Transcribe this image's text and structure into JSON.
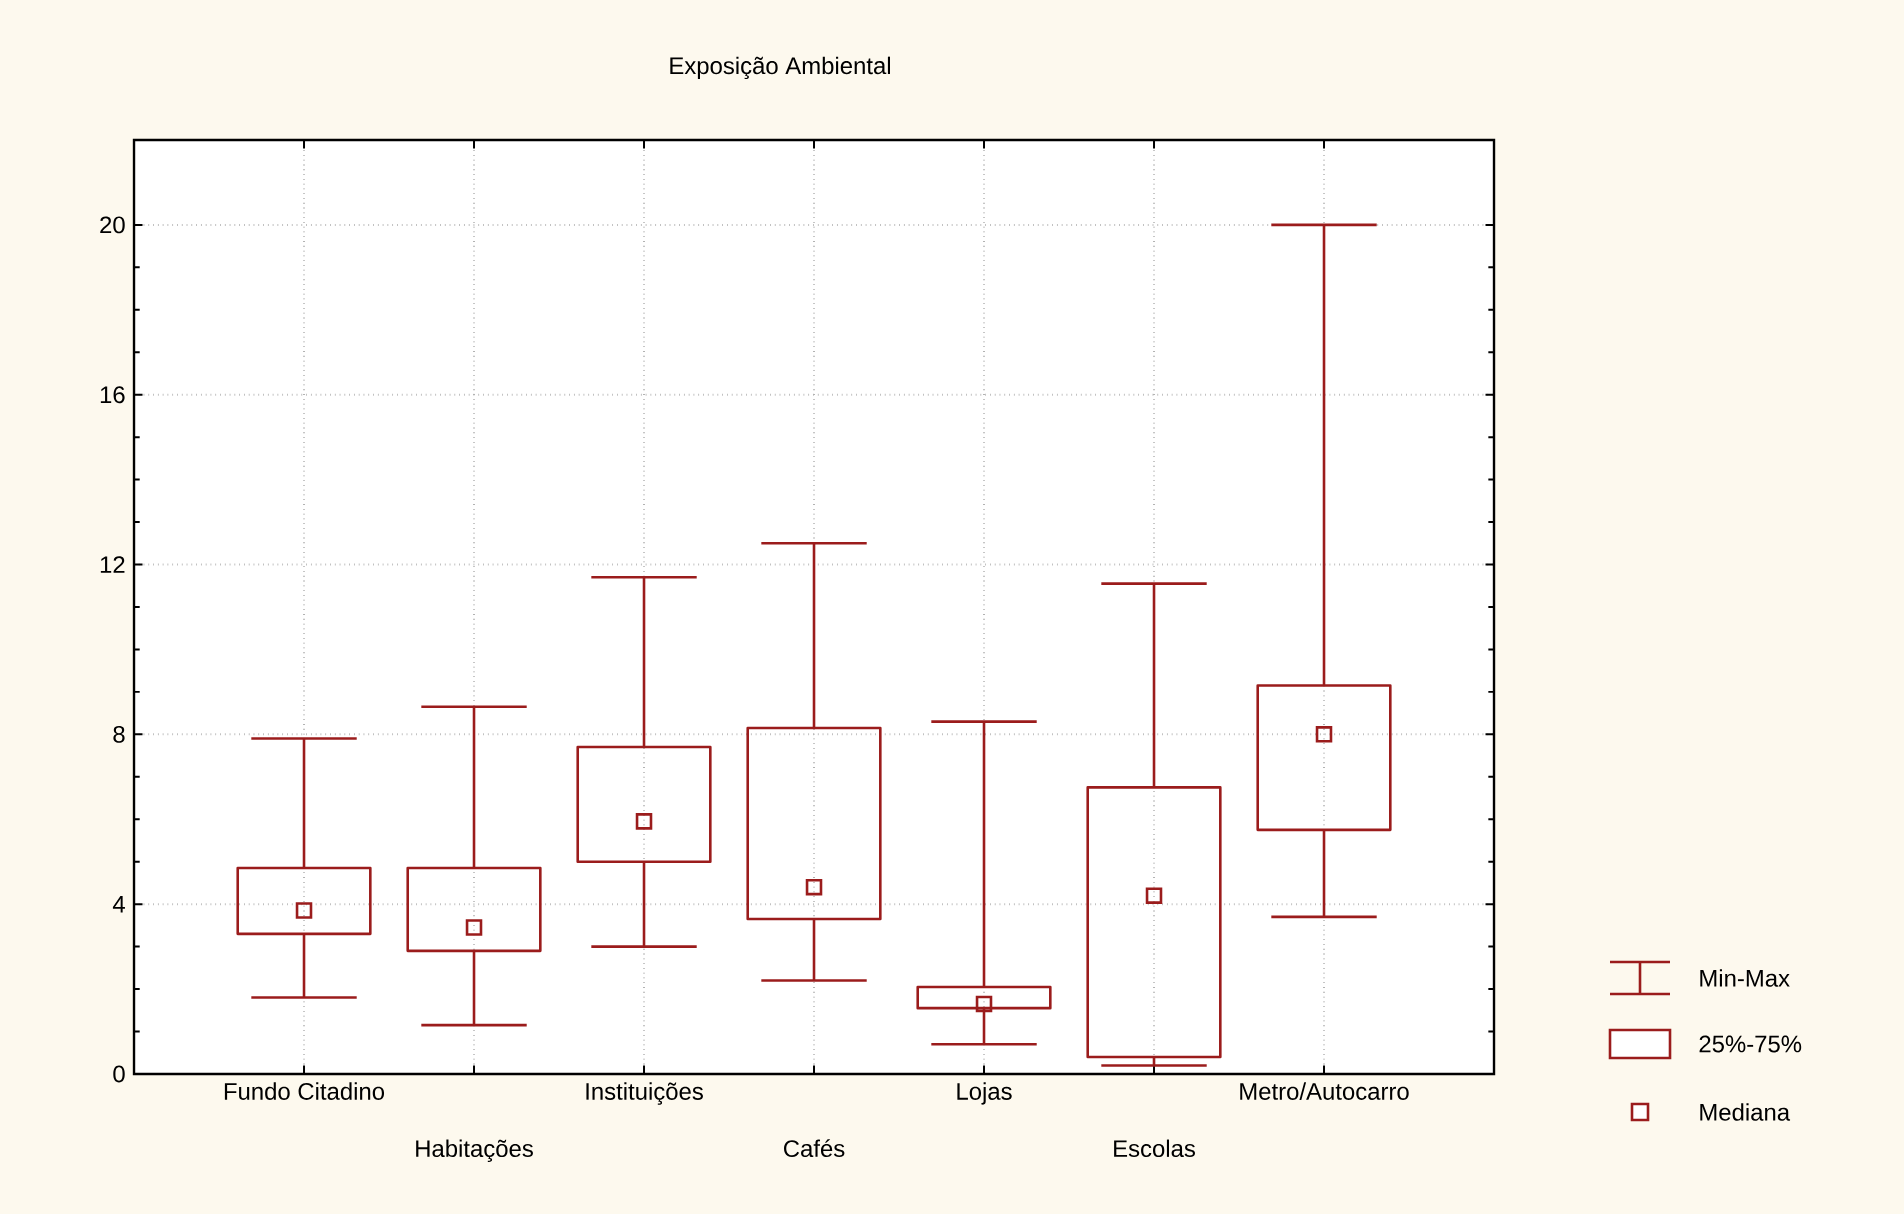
{
  "chart_data": {
    "type": "box",
    "title": "Exposição Ambiental",
    "categories": [
      "Fundo Citadino",
      "Habitações",
      "Instituições",
      "Cafés",
      "Lojas",
      "Escolas",
      "Metro/Autocarro"
    ],
    "boxes": [
      {
        "low": 1.8,
        "q1": 3.3,
        "median": 3.85,
        "q3": 4.85,
        "high": 7.9
      },
      {
        "low": 1.15,
        "q1": 2.9,
        "median": 3.45,
        "q3": 4.85,
        "high": 8.65
      },
      {
        "low": 3.0,
        "q1": 5.0,
        "median": 5.95,
        "q3": 7.7,
        "high": 11.7
      },
      {
        "low": 2.2,
        "q1": 3.65,
        "median": 4.4,
        "q3": 8.15,
        "high": 12.5
      },
      {
        "low": 0.7,
        "q1": 1.55,
        "median": 1.65,
        "q3": 2.05,
        "high": 8.3
      },
      {
        "low": 0.2,
        "q1": 0.4,
        "median": 4.2,
        "q3": 6.75,
        "high": 11.55
      },
      {
        "low": 3.7,
        "q1": 5.75,
        "median": 8.0,
        "q3": 9.15,
        "high": 20.0
      }
    ],
    "color": "#9b1c1c",
    "ylim": [
      0,
      22
    ],
    "yticks": [
      0,
      4,
      8,
      12,
      16,
      20
    ],
    "grid": true,
    "marker": "square",
    "annotations": [
      "Min-Max",
      "25%-75%",
      "Mediana"
    ]
  }
}
